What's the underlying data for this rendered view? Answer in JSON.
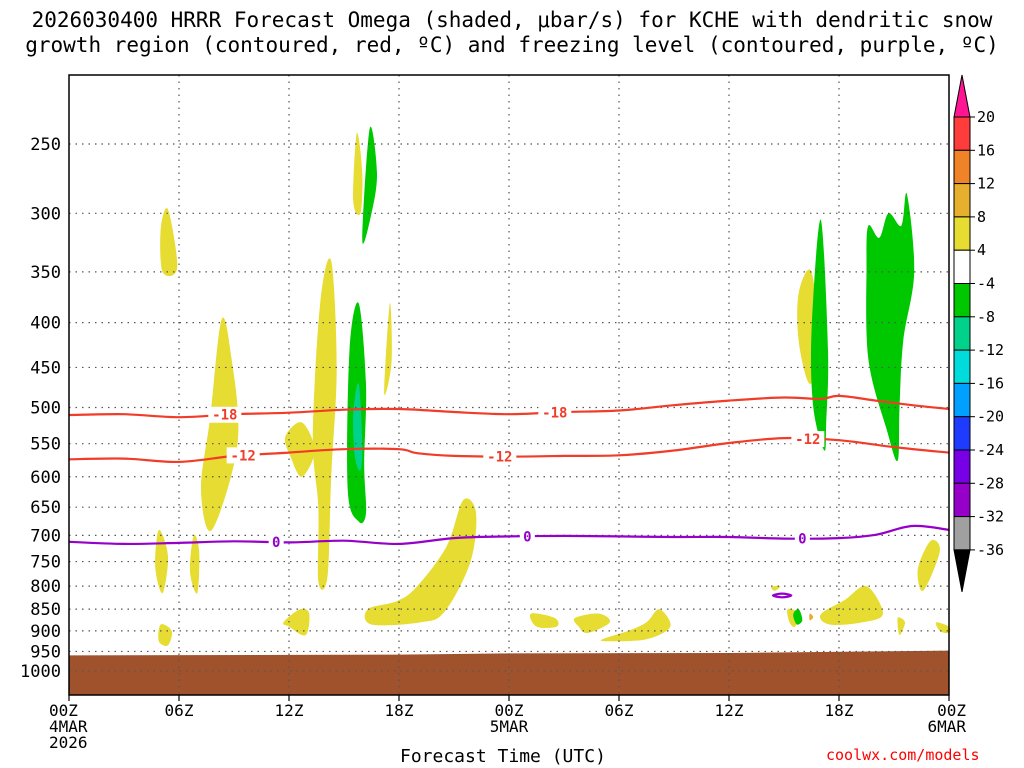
{
  "title_line1": "2026030400 HRRR Forecast Omega (shaded, μbar/s) for KCHE with dendritic snow",
  "title_line2": "growth region (contoured, red, ºC) and freezing level (contoured, purple, ºC)",
  "x_axis_title": "Forecast Time (UTC)",
  "credit": "coolwx.com/models",
  "colors": {
    "dendritic_contour": "#f03c28",
    "freezing_contour": "#9600c8",
    "ground": "#a0522d",
    "grid": "#555555"
  },
  "chart_data": {
    "type": "heatmap",
    "title": "2026030400 HRRR Forecast Omega (shaded, μbar/s) for KCHE with dendritic snow growth region (contoured, red, ºC) and freezing level (contoured, purple, ºC)",
    "xlabel": "Forecast Time (UTC)",
    "ylabel": "",
    "x_range_hours": [
      0,
      48
    ],
    "y_axis": "pressure (log)",
    "y_range_hpa": [
      200,
      1060
    ],
    "x_ticks": [
      {
        "hour": 0,
        "lines": [
          "00Z",
          "4MAR",
          "2026"
        ]
      },
      {
        "hour": 6,
        "lines": [
          "06Z"
        ]
      },
      {
        "hour": 12,
        "lines": [
          "12Z"
        ]
      },
      {
        "hour": 18,
        "lines": [
          "18Z"
        ]
      },
      {
        "hour": 24,
        "lines": [
          "00Z",
          "5MAR"
        ]
      },
      {
        "hour": 30,
        "lines": [
          "06Z"
        ]
      },
      {
        "hour": 36,
        "lines": [
          "12Z"
        ]
      },
      {
        "hour": 42,
        "lines": [
          "18Z"
        ]
      },
      {
        "hour": 48,
        "lines": [
          "00Z",
          "6MAR"
        ]
      }
    ],
    "y_ticks": [
      250,
      300,
      350,
      400,
      450,
      500,
      550,
      600,
      650,
      700,
      750,
      800,
      850,
      900,
      950,
      1000
    ],
    "grid": true,
    "colorbar": {
      "labels": [
        20,
        16,
        12,
        8,
        4,
        -4,
        -8,
        -12,
        -16,
        -20,
        -24,
        -28,
        -32,
        -36
      ],
      "colors": [
        "#ff1493",
        "#ff3c3c",
        "#f08228",
        "#e6af2d",
        "#e6dc32",
        "#ffffff",
        "#00c800",
        "#00d28c",
        "#00dcdc",
        "#00a0ff",
        "#1e3cff",
        "#7800e6",
        "#9600c8",
        "#a0a0a0",
        "#000000"
      ]
    },
    "contours": [
      {
        "label": "-18",
        "color": "#f03c28",
        "points": [
          [
            0,
            510
          ],
          [
            3,
            509
          ],
          [
            6,
            513
          ],
          [
            9,
            509
          ],
          [
            12,
            507
          ],
          [
            15,
            503
          ],
          [
            18,
            502
          ],
          [
            21,
            506
          ],
          [
            24,
            509
          ],
          [
            27,
            506
          ],
          [
            30,
            504
          ],
          [
            33,
            497
          ],
          [
            36,
            491
          ],
          [
            39,
            487
          ],
          [
            41,
            489
          ],
          [
            42,
            485
          ],
          [
            44,
            491
          ],
          [
            46,
            497
          ],
          [
            48,
            502
          ]
        ],
        "label_hours": [
          8.5,
          26.5
        ]
      },
      {
        "label": "-12",
        "color": "#f03c28",
        "points": [
          [
            0,
            573
          ],
          [
            3,
            572
          ],
          [
            6,
            577
          ],
          [
            9,
            568
          ],
          [
            12,
            563
          ],
          [
            15,
            558
          ],
          [
            18,
            558
          ],
          [
            19,
            564
          ],
          [
            21,
            568
          ],
          [
            24,
            569
          ],
          [
            27,
            568
          ],
          [
            30,
            567
          ],
          [
            33,
            560
          ],
          [
            36,
            549
          ],
          [
            39,
            542
          ],
          [
            42,
            545
          ],
          [
            45,
            555
          ],
          [
            48,
            563
          ]
        ],
        "label_hours": [
          9.5,
          23.5,
          40.3
        ]
      },
      {
        "label": "0",
        "color": "#9600c8",
        "points": [
          [
            0,
            712
          ],
          [
            3,
            716
          ],
          [
            6,
            714
          ],
          [
            9,
            711
          ],
          [
            12,
            713
          ],
          [
            15,
            710
          ],
          [
            18,
            716
          ],
          [
            21,
            705
          ],
          [
            24,
            702
          ],
          [
            27,
            701
          ],
          [
            30,
            702
          ],
          [
            33,
            703
          ],
          [
            36,
            703
          ],
          [
            39,
            706
          ],
          [
            42,
            705
          ],
          [
            44,
            699
          ],
          [
            46,
            683
          ],
          [
            48,
            690
          ]
        ],
        "label_hours": [
          11.3,
          25.0,
          40.0
        ]
      },
      {
        "label": "",
        "color": "#9600c8",
        "closed": true,
        "points": [
          [
            38.4,
            820
          ],
          [
            38.9,
            816
          ],
          [
            39.4,
            820
          ],
          [
            38.9,
            824
          ]
        ]
      }
    ],
    "shaded_regions": [
      {
        "value_range": [
          4,
          8
        ],
        "points": [
          [
            5.0,
            313
          ],
          [
            5.4,
            297
          ],
          [
            5.9,
            346
          ],
          [
            5.1,
            350
          ]
        ]
      },
      {
        "value_range": [
          4,
          8
        ],
        "points": [
          [
            7.7,
            513
          ],
          [
            8.3,
            398
          ],
          [
            8.8,
            430
          ],
          [
            9.2,
            548
          ],
          [
            7.8,
            690
          ],
          [
            7.2,
            620
          ]
        ]
      },
      {
        "value_range": [
          4,
          8
        ],
        "points": [
          [
            4.9,
            690
          ],
          [
            5.4,
            740
          ],
          [
            5.1,
            815
          ],
          [
            4.7,
            760
          ]
        ]
      },
      {
        "value_range": [
          4,
          8
        ],
        "points": [
          [
            6.8,
            700
          ],
          [
            7.1,
            730
          ],
          [
            7.0,
            815
          ],
          [
            6.6,
            770
          ]
        ]
      },
      {
        "value_range": [
          4,
          8
        ],
        "points": [
          [
            5.0,
            885
          ],
          [
            5.6,
            900
          ],
          [
            5.4,
            935
          ],
          [
            4.9,
            925
          ]
        ]
      },
      {
        "value_range": [
          4,
          8
        ],
        "points": [
          [
            11.8,
            540
          ],
          [
            12.7,
            520
          ],
          [
            13.4,
            560
          ],
          [
            12.7,
            600
          ],
          [
            12.1,
            570
          ]
        ]
      },
      {
        "value_range": [
          4,
          8
        ],
        "points": [
          [
            13.7,
            380
          ],
          [
            14.3,
            340
          ],
          [
            14.6,
            450
          ],
          [
            14.3,
            600
          ],
          [
            14.1,
            780
          ],
          [
            13.6,
            790
          ],
          [
            13.6,
            650
          ],
          [
            13.3,
            540
          ]
        ]
      },
      {
        "value_range": [
          4,
          8
        ],
        "points": [
          [
            15.7,
            243
          ],
          [
            16.0,
            270
          ],
          [
            15.9,
            300
          ],
          [
            15.5,
            290
          ]
        ]
      },
      {
        "value_range": [
          4,
          8
        ],
        "points": [
          [
            17.2,
            470
          ],
          [
            17.5,
            380
          ],
          [
            17.6,
            440
          ],
          [
            17.3,
            480
          ]
        ]
      },
      {
        "value_range": [
          4,
          8
        ],
        "points": [
          [
            11.7,
            880
          ],
          [
            12.6,
            850
          ],
          [
            13.1,
            860
          ],
          [
            12.9,
            910
          ],
          [
            12.0,
            890
          ]
        ]
      },
      {
        "value_range": [
          4,
          8
        ],
        "points": [
          [
            16.3,
            850
          ],
          [
            17.9,
            832
          ],
          [
            19.0,
            800
          ],
          [
            20.6,
            720
          ],
          [
            21.5,
            638
          ],
          [
            22.2,
            660
          ],
          [
            21.9,
            750
          ],
          [
            20.5,
            855
          ],
          [
            19.2,
            880
          ],
          [
            16.5,
            885
          ]
        ]
      },
      {
        "value_range": [
          4,
          8
        ],
        "points": [
          [
            25.2,
            860
          ],
          [
            26.5,
            870
          ],
          [
            26.6,
            890
          ],
          [
            25.5,
            890
          ]
        ]
      },
      {
        "value_range": [
          4,
          8
        ],
        "points": [
          [
            27.6,
            870
          ],
          [
            28.9,
            860
          ],
          [
            29.5,
            880
          ],
          [
            28.3,
            905
          ],
          [
            27.8,
            890
          ]
        ]
      },
      {
        "value_range": [
          4,
          8
        ],
        "points": [
          [
            29.1,
            920
          ],
          [
            30.5,
            900
          ],
          [
            31.5,
            880
          ],
          [
            32.2,
            850
          ],
          [
            32.8,
            890
          ],
          [
            31.5,
            920
          ],
          [
            29.4,
            925
          ]
        ]
      },
      {
        "value_range": [
          4,
          8
        ],
        "points": [
          [
            38.3,
            802
          ],
          [
            38.8,
            800
          ],
          [
            38.5,
            810
          ]
        ]
      },
      {
        "value_range": [
          4,
          8
        ],
        "points": [
          [
            39.2,
            850
          ],
          [
            39.8,
            860
          ],
          [
            39.6,
            890
          ],
          [
            39.3,
            880
          ]
        ]
      },
      {
        "value_range": [
          4,
          8
        ],
        "points": [
          [
            41.0,
            862
          ],
          [
            42.3,
            830
          ],
          [
            43.5,
            800
          ],
          [
            44.4,
            860
          ],
          [
            43.3,
            880
          ],
          [
            41.5,
            885
          ]
        ]
      },
      {
        "value_range": [
          4,
          8
        ],
        "points": [
          [
            45.2,
            870
          ],
          [
            45.6,
            880
          ],
          [
            45.3,
            910
          ]
        ]
      },
      {
        "value_range": [
          4,
          8
        ],
        "points": [
          [
            46.3,
            765
          ],
          [
            47.0,
            710
          ],
          [
            47.5,
            730
          ],
          [
            46.6,
            810
          ]
        ]
      },
      {
        "value_range": [
          4,
          8
        ],
        "points": [
          [
            47.3,
            880
          ],
          [
            48.0,
            890
          ],
          [
            48.0,
            905
          ],
          [
            47.5,
            900
          ]
        ]
      },
      {
        "value_range": [
          4,
          8
        ],
        "points": [
          [
            39.8,
            370
          ],
          [
            40.5,
            350
          ],
          [
            40.9,
            430
          ],
          [
            40.4,
            470
          ],
          [
            39.8,
            420
          ]
        ]
      },
      {
        "value_range": [
          8,
          12
        ],
        "points": [
          [
            40.4,
            860
          ],
          [
            40.6,
            868
          ],
          [
            40.4,
            875
          ]
        ]
      },
      {
        "value_range": [
          -8,
          -4
        ],
        "points": [
          [
            16.0,
            322
          ],
          [
            16.4,
            240
          ],
          [
            16.8,
            270
          ],
          [
            16.5,
            300
          ]
        ]
      },
      {
        "value_range": [
          -8,
          -4
        ],
        "points": [
          [
            15.3,
            430
          ],
          [
            15.8,
            380
          ],
          [
            16.2,
            470
          ],
          [
            16.1,
            580
          ],
          [
            16.2,
            660
          ],
          [
            15.8,
            675
          ],
          [
            15.2,
            620
          ]
        ]
      },
      {
        "value_range": [
          -12,
          -8
        ],
        "points": [
          [
            15.5,
            510
          ],
          [
            15.8,
            470
          ],
          [
            16.0,
            550
          ],
          [
            15.9,
            590
          ],
          [
            15.6,
            570
          ]
        ]
      },
      {
        "value_range": [
          -8,
          -4
        ],
        "points": [
          [
            39.5,
            862
          ],
          [
            39.8,
            850
          ],
          [
            40.0,
            875
          ],
          [
            39.7,
            885
          ]
        ]
      },
      {
        "value_range": [
          -8,
          -4
        ],
        "points": [
          [
            40.5,
            410
          ],
          [
            41.0,
            305
          ],
          [
            41.4,
            430
          ],
          [
            41.3,
            520
          ],
          [
            41.2,
            560
          ],
          [
            40.6,
            500
          ]
        ]
      },
      {
        "value_range": [
          -8,
          -4
        ],
        "points": [
          [
            43.5,
            345
          ],
          [
            43.6,
            310
          ],
          [
            44.2,
            320
          ],
          [
            44.7,
            300
          ],
          [
            45.4,
            310
          ],
          [
            45.7,
            285
          ],
          [
            46.1,
            350
          ],
          [
            45.5,
            420
          ],
          [
            45.3,
            500
          ],
          [
            45.2,
            575
          ],
          [
            44.6,
            530
          ],
          [
            43.6,
            440
          ]
        ]
      }
    ],
    "ground_top_hpa": [
      [
        0,
        960
      ],
      [
        18,
        958
      ],
      [
        24,
        955
      ],
      [
        36,
        954
      ],
      [
        48,
        948
      ]
    ]
  }
}
